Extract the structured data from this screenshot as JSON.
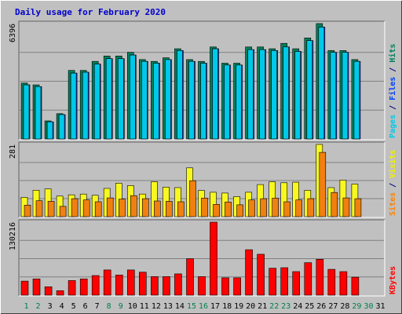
{
  "chart_data": {
    "type": "bar",
    "title": "Daily usage for February 2020",
    "categories": [
      "1",
      "2",
      "3",
      "4",
      "5",
      "6",
      "7",
      "8",
      "9",
      "10",
      "11",
      "12",
      "13",
      "14",
      "15",
      "16",
      "17",
      "18",
      "19",
      "20",
      "21",
      "22",
      "23",
      "24",
      "25",
      "26",
      "27",
      "28",
      "29",
      "30",
      "31"
    ],
    "weekend_days": [
      "1",
      "2",
      "8",
      "9",
      "15",
      "16",
      "22",
      "23",
      "29",
      "30"
    ],
    "panels": [
      {
        "name": "hits-files-pages",
        "ymax": 6396,
        "ymax_label": "6396",
        "ylabel_parts": [
          {
            "text": "Pages",
            "color": "#00c8e8"
          },
          {
            "text": " / ",
            "color": "#000080"
          },
          {
            "text": "Files",
            "color": "#0040ff"
          },
          {
            "text": " / ",
            "color": "#000080"
          },
          {
            "text": "Hits",
            "color": "#00805c"
          }
        ],
        "series": [
          {
            "name": "Hits",
            "color": "#00805c",
            "values": [
              3100,
              3000,
              1000,
              1400,
              3800,
              3800,
              4300,
              4600,
              4600,
              4800,
              4400,
              4300,
              4500,
              5000,
              4400,
              4300,
              5100,
              4200,
              4200,
              5100,
              5100,
              5000,
              5300,
              5000,
              5600,
              6396,
              4900,
              4900,
              4400,
              null,
              null
            ]
          },
          {
            "name": "Files",
            "color": "#0040ff",
            "values": [
              3000,
              2900,
              950,
              1350,
              3650,
              3700,
              4150,
              4450,
              4450,
              4650,
              4300,
              4200,
              4400,
              4900,
              4300,
              4200,
              5000,
              4100,
              4100,
              4950,
              4950,
              4900,
              5100,
              4850,
              5450,
              6200,
              4800,
              4800,
              4300,
              null,
              null
            ]
          },
          {
            "name": "Pages",
            "color": "#00c8e8",
            "values": [
              3000,
              2900,
              950,
              1350,
              3650,
              3700,
              4150,
              4450,
              4450,
              4650,
              4300,
              4200,
              4400,
              4900,
              4300,
              4200,
              5000,
              4100,
              4100,
              4950,
              4950,
              4900,
              5100,
              4850,
              5450,
              6200,
              4800,
              4800,
              4300,
              null,
              null
            ]
          }
        ]
      },
      {
        "name": "visits-sites",
        "ymax": 281,
        "ymax_label": "281",
        "ylabel_parts": [
          {
            "text": "Sites",
            "color": "#ff8000"
          },
          {
            "text": " / ",
            "color": "#000080"
          },
          {
            "text": "Visits",
            "color": "#f0f000"
          }
        ],
        "series": [
          {
            "name": "Visits",
            "color": "#f8f820",
            "values": [
              75,
              103,
              108,
              80,
              85,
              88,
              83,
              110,
              130,
              121,
              88,
              136,
              115,
              113,
              190,
              102,
              95,
              92,
              78,
              95,
              125,
              136,
              132,
              134,
              103,
              281,
              113,
              142,
              127,
              null,
              null
            ]
          },
          {
            "name": "Sites",
            "color": "#f08010",
            "values": [
              45,
              62,
              60,
              40,
              70,
              65,
              58,
              73,
              68,
              82,
              70,
              61,
              60,
              58,
              140,
              72,
              48,
              57,
              46,
              65,
              70,
              72,
              58,
              65,
              70,
              250,
              94,
              73,
              70,
              null,
              null
            ]
          }
        ]
      },
      {
        "name": "kbytes",
        "ymax": 130216,
        "ymax_label": "130216",
        "ylabel_parts": [
          {
            "text": "KBytes",
            "color": "#ff0000"
          }
        ],
        "series": [
          {
            "name": "KBytes",
            "color": "#ff0000",
            "values": [
              25000,
              29000,
              15000,
              8000,
              26000,
              29000,
              35000,
              45000,
              36000,
              45000,
              41000,
              33000,
              33000,
              38000,
              65000,
              33000,
              130216,
              31000,
              31000,
              81000,
              73000,
              48000,
              49000,
              42000,
              58000,
              64000,
              46000,
              42000,
              32000,
              null,
              null
            ]
          }
        ]
      }
    ]
  }
}
